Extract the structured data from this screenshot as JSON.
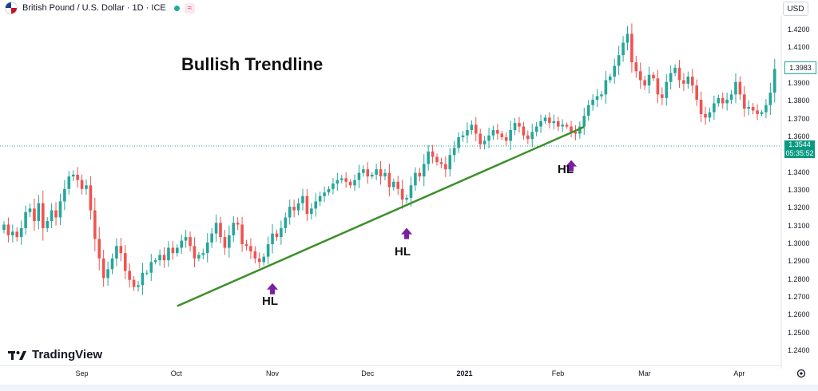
{
  "header": {
    "symbol_title": "British Pound / U.S. Dollar · 1D · ICE",
    "wave_badge": "≈",
    "currency": "USD"
  },
  "annotations": {
    "title": "Bullish Trendline",
    "hl_label": "HL",
    "brand": "TradingView"
  },
  "colors": {
    "up": "#26a69a",
    "down": "#ef5350",
    "trendline": "#3c8f2c",
    "arrow": "#7b1fa2",
    "last_price_bg": "#089981"
  },
  "price_tags": {
    "last": "1.3983",
    "current": "1.3544",
    "countdown": "05:35:52"
  },
  "chart_data": {
    "type": "candlestick",
    "ylim": [
      1.232,
      1.428
    ],
    "y_ticks": [
      "1.4200",
      "1.4100",
      "1.4000",
      "1.3900",
      "1.3800",
      "1.3700",
      "1.3600",
      "1.3500",
      "1.3400",
      "1.3300",
      "1.3200",
      "1.3100",
      "1.3000",
      "1.2900",
      "1.2800",
      "1.2700",
      "1.2600",
      "1.2500",
      "1.2400"
    ],
    "y_tick_values": [
      1.42,
      1.41,
      1.4,
      1.39,
      1.38,
      1.37,
      1.36,
      1.35,
      1.34,
      1.33,
      1.32,
      1.31,
      1.3,
      1.29,
      1.28,
      1.27,
      1.26,
      1.25,
      1.24
    ],
    "x_ticks": [
      "Sep",
      "Oct",
      "Nov",
      "Dec",
      "2021",
      "Feb",
      "Mar",
      "Apr"
    ],
    "x_tick_bars": [
      18,
      40,
      62,
      84,
      106,
      128,
      148,
      170
    ],
    "trendline": {
      "from": {
        "bar": 40,
        "price": 1.2653
      },
      "to": {
        "bar": 134,
        "price": 1.3658
      }
    },
    "higher_lows": [
      {
        "bar": 62,
        "price": 1.288
      },
      {
        "bar": 93,
        "price": 1.319
      },
      {
        "bar": 131,
        "price": 1.357
      }
    ],
    "closes": [
      1.311,
      1.305,
      1.307,
      1.304,
      1.309,
      1.318,
      1.32,
      1.313,
      1.323,
      1.309,
      1.313,
      1.319,
      1.315,
      1.324,
      1.331,
      1.338,
      1.339,
      1.336,
      1.331,
      1.333,
      1.319,
      1.303,
      1.292,
      1.281,
      1.286,
      1.292,
      1.299,
      1.295,
      1.285,
      1.28,
      1.276,
      1.277,
      1.284,
      1.284,
      1.29,
      1.291,
      1.294,
      1.291,
      1.298,
      1.295,
      1.298,
      1.302,
      1.304,
      1.299,
      1.292,
      1.294,
      1.295,
      1.301,
      1.306,
      1.312,
      1.304,
      1.298,
      1.305,
      1.312,
      1.311,
      1.3,
      1.299,
      1.296,
      1.292,
      1.29,
      1.293,
      1.3,
      1.306,
      1.304,
      1.309,
      1.315,
      1.321,
      1.319,
      1.323,
      1.327,
      1.317,
      1.32,
      1.324,
      1.327,
      1.329,
      1.331,
      1.334,
      1.336,
      1.337,
      1.335,
      1.333,
      1.336,
      1.34,
      1.342,
      1.338,
      1.339,
      1.342,
      1.338,
      1.34,
      1.332,
      1.335,
      1.331,
      1.325,
      1.326,
      1.333,
      1.34,
      1.338,
      1.345,
      1.352,
      1.349,
      1.346,
      1.345,
      1.342,
      1.35,
      1.354,
      1.36,
      1.361,
      1.364,
      1.367,
      1.362,
      1.356,
      1.358,
      1.361,
      1.364,
      1.362,
      1.36,
      1.358,
      1.364,
      1.368,
      1.366,
      1.361,
      1.359,
      1.363,
      1.366,
      1.369,
      1.371,
      1.368,
      1.369,
      1.366,
      1.367,
      1.366,
      1.363,
      1.362,
      1.366,
      1.372,
      1.378,
      1.381,
      1.383,
      1.384,
      1.392,
      1.394,
      1.4,
      1.406,
      1.413,
      1.418,
      1.402,
      1.397,
      1.392,
      1.389,
      1.395,
      1.393,
      1.384,
      1.382,
      1.391,
      1.396,
      1.399,
      1.392,
      1.39,
      1.394,
      1.389,
      1.381,
      1.373,
      1.371,
      1.374,
      1.379,
      1.382,
      1.379,
      1.381,
      1.384,
      1.391,
      1.384,
      1.376,
      1.377,
      1.375,
      1.373,
      1.374,
      1.378,
      1.385,
      1.3983
    ]
  }
}
